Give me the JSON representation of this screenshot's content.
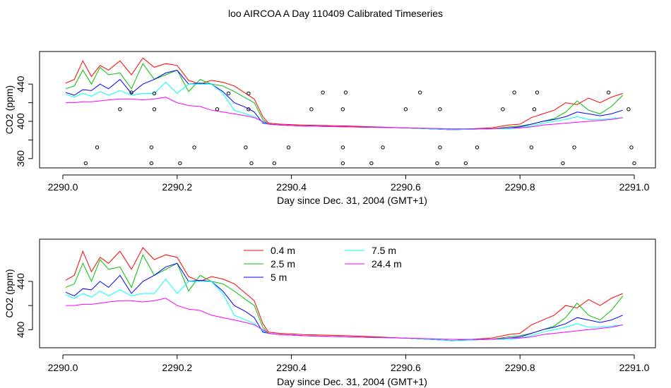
{
  "title": "loo AIRCOA A  Day 110409  Calibrated Timeseries",
  "colors": {
    "0.4 m": "#ff0000",
    "2.5 m": "#00c000",
    "5 m": "#0000ff",
    "7.5 m": "#00ffff",
    "24.4 m": "#ff00ff",
    "points": "#000000"
  },
  "chart_data": [
    {
      "type": "line",
      "xlabel": "Day since Dec. 31, 2004 (GMT+1)",
      "ylabel": "CO2 (ppm)",
      "xlim": [
        2290.0,
        2291.0
      ],
      "ylim": [
        350,
        475
      ],
      "x_ticks": [
        "2290.0",
        "2290.2",
        "2290.4",
        "2290.6",
        "2290.8",
        "2291.0"
      ],
      "y_ticks": [
        "360",
        "400",
        "440"
      ],
      "legend": null,
      "series": [
        {
          "name": "0.4 m",
          "x": [
            2290.005,
            2290.02,
            2290.035,
            2290.05,
            2290.065,
            2290.08,
            2290.1,
            2290.12,
            2290.14,
            2290.16,
            2290.18,
            2290.2,
            2290.22,
            2290.24,
            2290.26,
            2290.28,
            2290.3,
            2290.32,
            2290.335,
            2290.35,
            2290.36,
            2290.38,
            2290.42,
            2290.5,
            2290.6,
            2290.68,
            2290.75,
            2290.78,
            2290.8,
            2290.82,
            2290.84,
            2290.86,
            2290.88,
            2290.9,
            2290.92,
            2290.94,
            2290.96,
            2290.98
          ],
          "y": [
            441,
            445,
            465,
            448,
            460,
            455,
            465,
            450,
            468,
            458,
            462,
            460,
            444,
            440,
            444,
            442,
            438,
            430,
            424,
            405,
            398,
            397,
            396,
            395,
            393,
            391,
            393,
            396,
            397,
            404,
            408,
            412,
            420,
            418,
            425,
            420,
            426,
            430
          ]
        },
        {
          "name": "2.5 m",
          "x": [
            2290.005,
            2290.02,
            2290.035,
            2290.05,
            2290.065,
            2290.08,
            2290.1,
            2290.12,
            2290.14,
            2290.16,
            2290.18,
            2290.2,
            2290.22,
            2290.24,
            2290.26,
            2290.28,
            2290.3,
            2290.32,
            2290.335,
            2290.35,
            2290.36,
            2290.38,
            2290.42,
            2290.5,
            2290.6,
            2290.68,
            2290.75,
            2290.78,
            2290.8,
            2290.82,
            2290.84,
            2290.86,
            2290.88,
            2290.9,
            2290.92,
            2290.94,
            2290.96,
            2290.98
          ],
          "y": [
            435,
            438,
            455,
            440,
            458,
            450,
            452,
            435,
            462,
            445,
            450,
            455,
            432,
            445,
            440,
            438,
            432,
            425,
            420,
            402,
            397,
            396,
            395,
            394,
            393,
            391,
            392,
            394,
            395,
            397,
            400,
            403,
            410,
            422,
            412,
            408,
            416,
            428
          ]
        },
        {
          "name": "5 m",
          "x": [
            2290.005,
            2290.02,
            2290.035,
            2290.05,
            2290.065,
            2290.08,
            2290.1,
            2290.12,
            2290.14,
            2290.16,
            2290.18,
            2290.2,
            2290.22,
            2290.24,
            2290.26,
            2290.28,
            2290.3,
            2290.32,
            2290.335,
            2290.35,
            2290.36,
            2290.38,
            2290.42,
            2290.5,
            2290.6,
            2290.68,
            2290.75,
            2290.78,
            2290.8,
            2290.82,
            2290.84,
            2290.86,
            2290.88,
            2290.9,
            2290.92,
            2290.94,
            2290.96,
            2290.98
          ],
          "y": [
            431,
            428,
            434,
            433,
            440,
            435,
            445,
            430,
            440,
            445,
            452,
            455,
            440,
            441,
            440,
            432,
            420,
            415,
            410,
            398,
            397,
            396,
            395,
            394,
            393,
            391,
            392,
            393,
            394,
            397,
            400,
            402,
            405,
            410,
            408,
            406,
            408,
            412
          ]
        },
        {
          "name": "7.5 m",
          "x": [
            2290.005,
            2290.02,
            2290.035,
            2290.05,
            2290.065,
            2290.08,
            2290.1,
            2290.12,
            2290.14,
            2290.16,
            2290.18,
            2290.2,
            2290.22,
            2290.24,
            2290.26,
            2290.28,
            2290.3,
            2290.32,
            2290.335,
            2290.35,
            2290.36,
            2290.38,
            2290.42,
            2290.5,
            2290.6,
            2290.68,
            2290.75,
            2290.78,
            2290.8,
            2290.82,
            2290.84,
            2290.86,
            2290.88,
            2290.9,
            2290.92,
            2290.94,
            2290.96,
            2290.98
          ],
          "y": [
            429,
            426,
            430,
            427,
            432,
            428,
            433,
            428,
            430,
            430,
            442,
            430,
            440,
            440,
            440,
            430,
            412,
            408,
            405,
            399,
            397,
            396,
            395,
            394,
            393,
            391,
            392,
            392,
            393,
            395,
            398,
            400,
            402,
            405,
            402,
            402,
            403,
            404
          ]
        },
        {
          "name": "24.4 m",
          "x": [
            2290.005,
            2290.02,
            2290.035,
            2290.05,
            2290.065,
            2290.08,
            2290.1,
            2290.12,
            2290.14,
            2290.16,
            2290.18,
            2290.2,
            2290.22,
            2290.24,
            2290.26,
            2290.28,
            2290.3,
            2290.32,
            2290.335,
            2290.35,
            2290.36,
            2290.38,
            2290.42,
            2290.5,
            2290.6,
            2290.68,
            2290.75,
            2290.78,
            2290.8,
            2290.82,
            2290.84,
            2290.86,
            2290.88,
            2290.9,
            2290.92,
            2290.94,
            2290.96,
            2290.98
          ],
          "y": [
            420,
            420,
            421,
            421,
            422,
            423,
            424,
            424,
            423,
            424,
            426,
            420,
            417,
            416,
            412,
            410,
            408,
            406,
            404,
            400,
            397,
            396,
            395,
            394,
            393,
            392,
            392,
            393,
            393,
            394,
            396,
            397,
            398,
            399,
            400,
            401,
            402,
            404
          ]
        }
      ],
      "points": {
        "name": "points",
        "x": [
          2290.04,
          2290.06,
          2290.1,
          2290.12,
          2290.155,
          2290.155,
          2290.16,
          2290.16,
          2290.205,
          2290.23,
          2290.27,
          2290.29,
          2290.32,
          2290.325,
          2290.325,
          2290.33,
          2290.37,
          2290.395,
          2290.435,
          2290.455,
          2290.49,
          2290.49,
          2290.49,
          2290.495,
          2290.54,
          2290.56,
          2290.6,
          2290.625,
          2290.655,
          2290.66,
          2290.66,
          2290.705,
          2290.725,
          2290.77,
          2290.79,
          2290.82,
          2290.825,
          2290.83,
          2290.875,
          2290.895,
          2290.955,
          2290.99,
          2290.995,
          2291.0
        ],
        "y": [
          355,
          372,
          413,
          431,
          355,
          372,
          413,
          430,
          355,
          372,
          413,
          430,
          372,
          413,
          430,
          355,
          355,
          372,
          413,
          431,
          355,
          372,
          413,
          431,
          355,
          372,
          413,
          431,
          355,
          372,
          413,
          355,
          372,
          413,
          431,
          372,
          413,
          431,
          355,
          372,
          431,
          413,
          372,
          355
        ]
      }
    },
    {
      "type": "line",
      "xlabel": "Day since Dec. 31, 2004 (GMT+1)",
      "ylabel": "CO2 (ppm)",
      "xlim": [
        2290.0,
        2291.0
      ],
      "ylim": [
        385,
        475
      ],
      "x_ticks": [
        "2290.0",
        "2290.2",
        "2290.4",
        "2290.6",
        "2290.8",
        "2291.0"
      ],
      "y_ticks": [
        "400",
        "440"
      ],
      "legend": [
        "0.4 m",
        "2.5 m",
        "5 m",
        "7.5 m",
        "24.4 m"
      ],
      "series": [
        {
          "name": "0.4 m",
          "x": [
            2290.005,
            2290.02,
            2290.035,
            2290.05,
            2290.065,
            2290.08,
            2290.1,
            2290.12,
            2290.14,
            2290.16,
            2290.18,
            2290.2,
            2290.22,
            2290.24,
            2290.26,
            2290.28,
            2290.3,
            2290.32,
            2290.335,
            2290.35,
            2290.36,
            2290.38,
            2290.42,
            2290.5,
            2290.6,
            2290.68,
            2290.75,
            2290.78,
            2290.8,
            2290.82,
            2290.84,
            2290.86,
            2290.88,
            2290.9,
            2290.92,
            2290.94,
            2290.96,
            2290.98
          ],
          "y": [
            441,
            445,
            465,
            448,
            460,
            455,
            465,
            450,
            468,
            458,
            462,
            460,
            444,
            440,
            444,
            442,
            438,
            430,
            424,
            405,
            398,
            397,
            396,
            395,
            393,
            391,
            393,
            396,
            397,
            404,
            408,
            412,
            420,
            418,
            425,
            420,
            426,
            430
          ]
        },
        {
          "name": "2.5 m",
          "x": [
            2290.005,
            2290.02,
            2290.035,
            2290.05,
            2290.065,
            2290.08,
            2290.1,
            2290.12,
            2290.14,
            2290.16,
            2290.18,
            2290.2,
            2290.22,
            2290.24,
            2290.26,
            2290.28,
            2290.3,
            2290.32,
            2290.335,
            2290.35,
            2290.36,
            2290.38,
            2290.42,
            2290.5,
            2290.6,
            2290.68,
            2290.75,
            2290.78,
            2290.8,
            2290.82,
            2290.84,
            2290.86,
            2290.88,
            2290.9,
            2290.92,
            2290.94,
            2290.96,
            2290.98
          ],
          "y": [
            435,
            438,
            455,
            440,
            458,
            450,
            452,
            435,
            462,
            445,
            450,
            455,
            432,
            445,
            440,
            438,
            432,
            425,
            420,
            402,
            397,
            396,
            395,
            394,
            393,
            391,
            392,
            394,
            395,
            397,
            400,
            403,
            410,
            422,
            412,
            408,
            416,
            428
          ]
        },
        {
          "name": "5 m",
          "x": [
            2290.005,
            2290.02,
            2290.035,
            2290.05,
            2290.065,
            2290.08,
            2290.1,
            2290.12,
            2290.14,
            2290.16,
            2290.18,
            2290.2,
            2290.22,
            2290.24,
            2290.26,
            2290.28,
            2290.3,
            2290.32,
            2290.335,
            2290.35,
            2290.36,
            2290.38,
            2290.42,
            2290.5,
            2290.6,
            2290.68,
            2290.75,
            2290.78,
            2290.8,
            2290.82,
            2290.84,
            2290.86,
            2290.88,
            2290.9,
            2290.92,
            2290.94,
            2290.96,
            2290.98
          ],
          "y": [
            431,
            428,
            434,
            433,
            440,
            435,
            445,
            430,
            440,
            445,
            452,
            455,
            440,
            441,
            440,
            432,
            420,
            415,
            410,
            398,
            397,
            396,
            395,
            394,
            393,
            391,
            392,
            393,
            394,
            397,
            400,
            402,
            405,
            410,
            408,
            406,
            408,
            412
          ]
        },
        {
          "name": "7.5 m",
          "x": [
            2290.005,
            2290.02,
            2290.035,
            2290.05,
            2290.065,
            2290.08,
            2290.1,
            2290.12,
            2290.14,
            2290.16,
            2290.18,
            2290.2,
            2290.22,
            2290.24,
            2290.26,
            2290.28,
            2290.3,
            2290.32,
            2290.335,
            2290.35,
            2290.36,
            2290.38,
            2290.42,
            2290.5,
            2290.6,
            2290.68,
            2290.75,
            2290.78,
            2290.8,
            2290.82,
            2290.84,
            2290.86,
            2290.88,
            2290.9,
            2290.92,
            2290.94,
            2290.96,
            2290.98
          ],
          "y": [
            429,
            426,
            430,
            427,
            432,
            428,
            433,
            428,
            430,
            430,
            442,
            430,
            440,
            440,
            440,
            430,
            412,
            408,
            405,
            399,
            397,
            396,
            395,
            394,
            393,
            391,
            392,
            392,
            393,
            395,
            398,
            400,
            402,
            405,
            402,
            402,
            403,
            404
          ]
        },
        {
          "name": "24.4 m",
          "x": [
            2290.005,
            2290.02,
            2290.035,
            2290.05,
            2290.065,
            2290.08,
            2290.1,
            2290.12,
            2290.14,
            2290.16,
            2290.18,
            2290.2,
            2290.22,
            2290.24,
            2290.26,
            2290.28,
            2290.3,
            2290.32,
            2290.335,
            2290.35,
            2290.36,
            2290.38,
            2290.42,
            2290.5,
            2290.6,
            2290.68,
            2290.75,
            2290.78,
            2290.8,
            2290.82,
            2290.84,
            2290.86,
            2290.88,
            2290.9,
            2290.92,
            2290.94,
            2290.96,
            2290.98
          ],
          "y": [
            420,
            420,
            421,
            421,
            422,
            423,
            424,
            424,
            423,
            424,
            426,
            420,
            417,
            416,
            412,
            410,
            408,
            406,
            404,
            400,
            397,
            396,
            395,
            394,
            393,
            392,
            392,
            393,
            393,
            394,
            396,
            397,
            398,
            399,
            400,
            401,
            402,
            404
          ]
        }
      ]
    }
  ]
}
